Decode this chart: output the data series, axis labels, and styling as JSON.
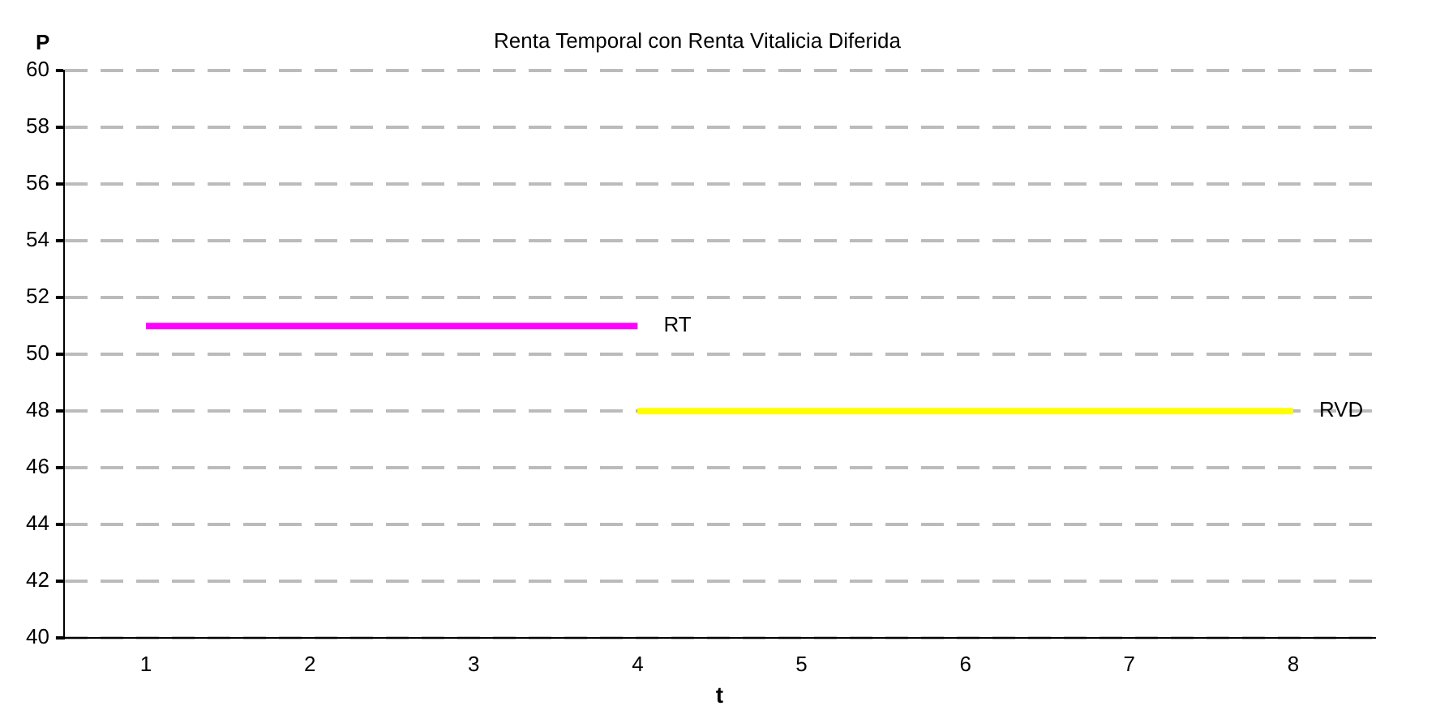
{
  "chart_data": {
    "type": "line",
    "title": "Renta Temporal con Renta Vitalicia Diferida",
    "xlabel": "t",
    "ylabel": "P",
    "categories": [
      "1",
      "2",
      "3",
      "4",
      "5",
      "6",
      "7",
      "8"
    ],
    "series": [
      {
        "name": "RT",
        "color": "#ff00ff",
        "values": [
          51,
          51,
          51,
          51,
          null,
          null,
          null,
          null
        ]
      },
      {
        "name": "RVD",
        "color": "#ffff00",
        "values": [
          null,
          null,
          null,
          48,
          48,
          48,
          48,
          48
        ]
      }
    ],
    "ylim": [
      40,
      60
    ],
    "yticks": [
      40,
      42,
      44,
      46,
      48,
      50,
      52,
      54,
      56,
      58,
      60
    ],
    "grid": "y",
    "legend": false,
    "marker": "none",
    "line_style": "solid"
  }
}
